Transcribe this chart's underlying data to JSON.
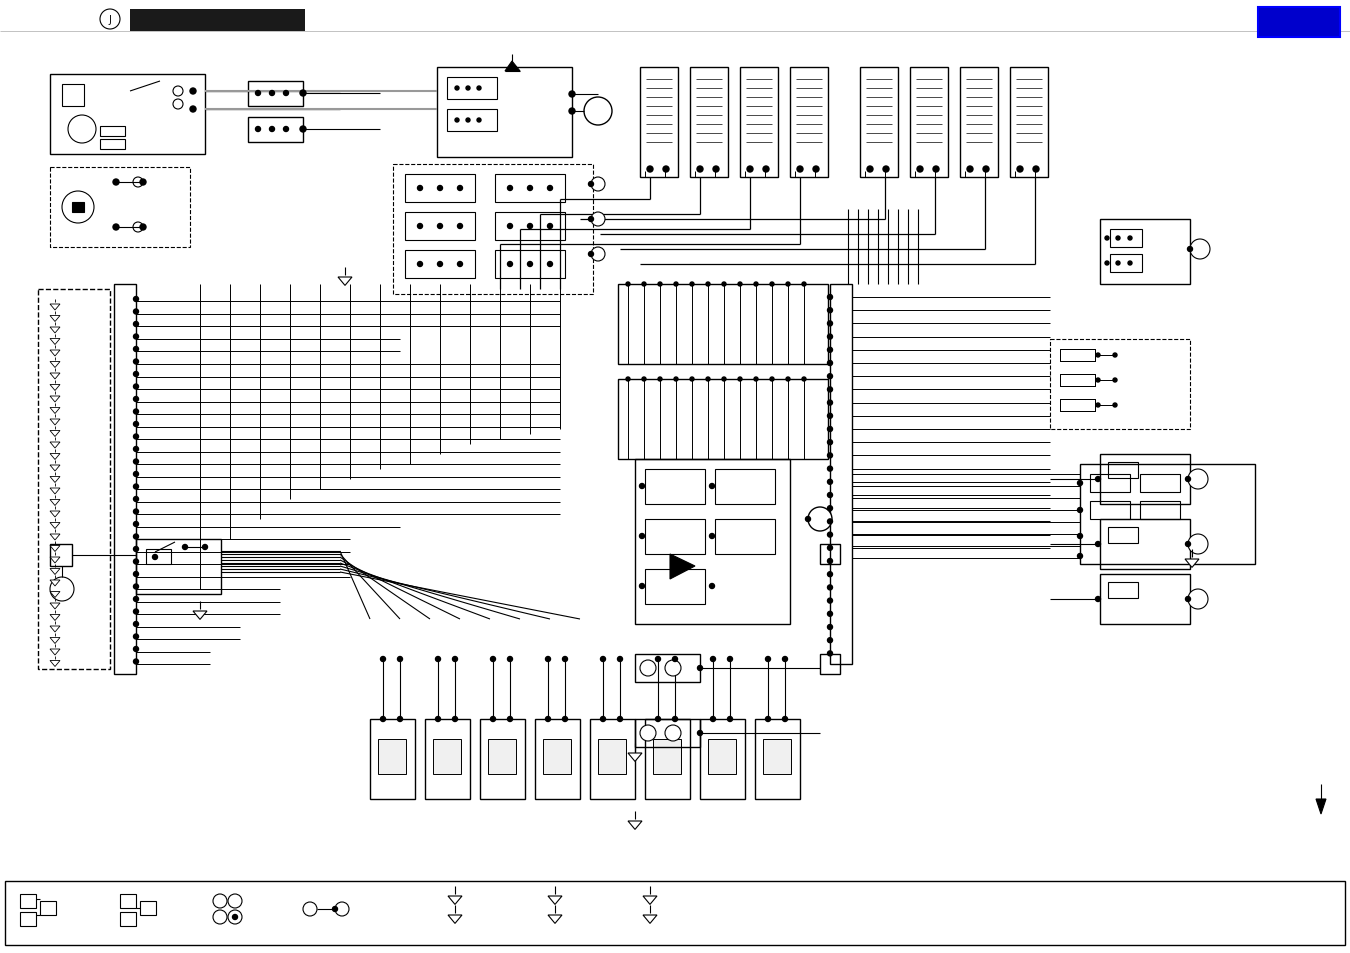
{
  "bg_color": "#ffffff",
  "line_color": "#000000",
  "header_bar_color": "#1a1a1a",
  "header_bar2_color": "#0000cc",
  "fig_width": 13.5,
  "fig_height": 9.54,
  "dpi": 100
}
